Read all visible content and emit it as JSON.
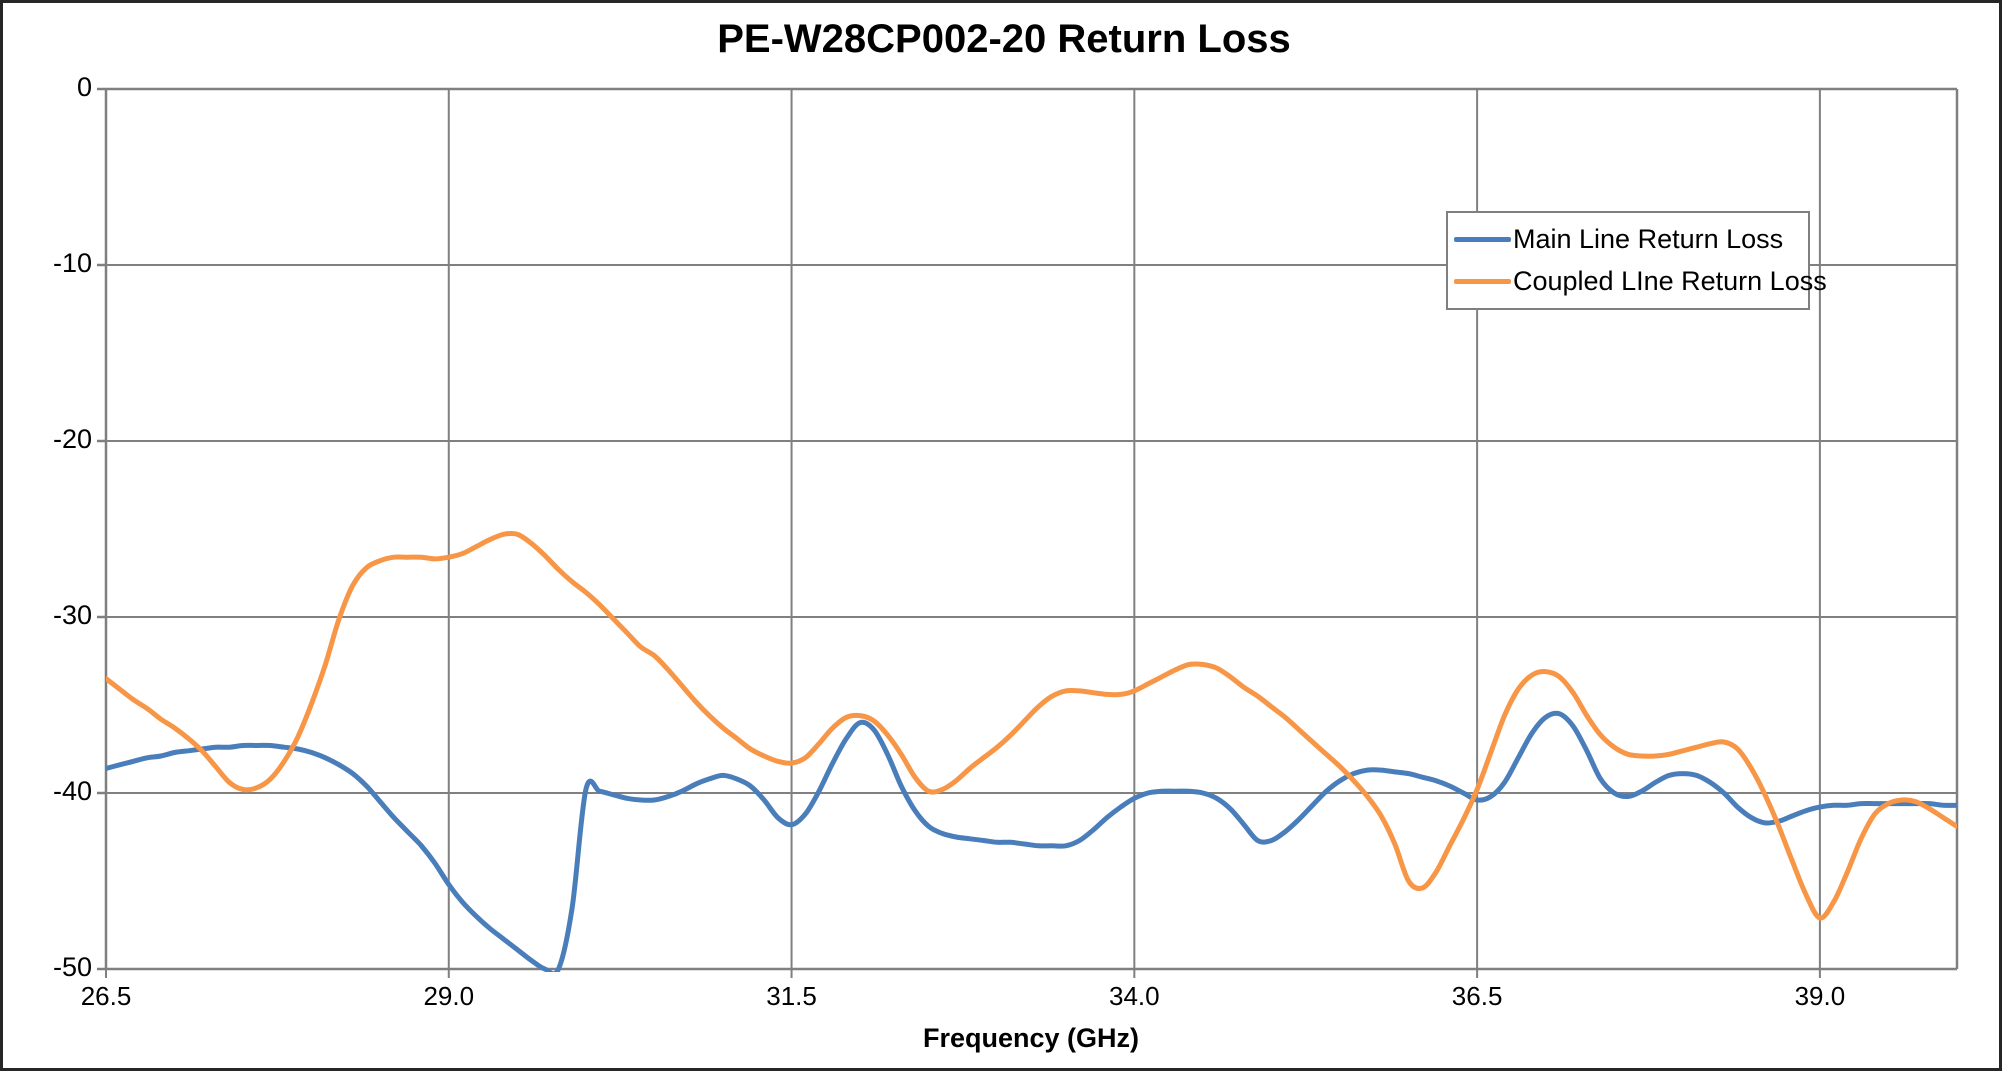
{
  "chart": {
    "title": "PE-W28CP002-20 Return Loss",
    "x_axis_title": "Frequency (GHz)",
    "x_tick_labels": [
      "26.5",
      "29.0",
      "31.5",
      "34.0",
      "36.5",
      "39.0"
    ],
    "y_tick_labels": [
      "0",
      "-10",
      "-20",
      "-30",
      "-40",
      "-50"
    ]
  },
  "chart_data": {
    "type": "line",
    "title": "PE-W28CP002-20 Return Loss",
    "xlabel": "Frequency (GHz)",
    "ylabel": "",
    "xlim": [
      26.5,
      40.0
    ],
    "ylim": [
      -50,
      0
    ],
    "xticks": [
      26.5,
      29.0,
      31.5,
      34.0,
      36.5,
      39.0
    ],
    "yticks": [
      0,
      -10,
      -20,
      -30,
      -40,
      -50
    ],
    "grid": true,
    "legend_position": "inside-top-right",
    "x_start": 26.5,
    "x_step": 0.1,
    "colors": {
      "gridline": "#808080",
      "axis": "#7F7F7F",
      "border": "#262626",
      "background": "#FFFFFF",
      "text": "#000000"
    },
    "series": [
      {
        "name": "Main Line Return Loss",
        "color": "#4A7EBB",
        "values": [
          -38.6,
          -38.4,
          -38.2,
          -38.0,
          -37.9,
          -37.7,
          -37.6,
          -37.5,
          -37.4,
          -37.4,
          -37.3,
          -37.3,
          -37.3,
          -37.4,
          -37.5,
          -37.7,
          -38.0,
          -38.4,
          -38.9,
          -39.6,
          -40.5,
          -41.4,
          -42.2,
          -43.0,
          -44.0,
          -45.2,
          -46.2,
          -47.0,
          -47.7,
          -48.3,
          -48.9,
          -49.5,
          -50.0,
          -50.0,
          -46.5,
          -39.8,
          -39.9,
          -40.1,
          -40.3,
          -40.4,
          -40.4,
          -40.2,
          -39.9,
          -39.5,
          -39.2,
          -39.0,
          -39.2,
          -39.6,
          -40.4,
          -41.4,
          -41.8,
          -41.2,
          -39.9,
          -38.3,
          -36.9,
          -36.0,
          -36.4,
          -37.8,
          -39.6,
          -41.0,
          -41.9,
          -42.3,
          -42.5,
          -42.6,
          -42.7,
          -42.8,
          -42.8,
          -42.9,
          -43.0,
          -43.0,
          -43.0,
          -42.7,
          -42.1,
          -41.4,
          -40.8,
          -40.3,
          -40.0,
          -39.9,
          -39.9,
          -39.9,
          -40.0,
          -40.3,
          -40.9,
          -41.8,
          -42.7,
          -42.7,
          -42.2,
          -41.5,
          -40.7,
          -39.9,
          -39.3,
          -38.9,
          -38.7,
          -38.7,
          -38.8,
          -38.9,
          -39.1,
          -39.3,
          -39.6,
          -40.0,
          -40.4,
          -40.2,
          -39.4,
          -38.0,
          -36.6,
          -35.7,
          -35.5,
          -36.2,
          -37.6,
          -39.2,
          -40.0,
          -40.2,
          -39.9,
          -39.4,
          -39.0,
          -38.9,
          -39.0,
          -39.4,
          -40.0,
          -40.8,
          -41.4,
          -41.7,
          -41.6,
          -41.3,
          -41.0,
          -40.8,
          -40.7,
          -40.7,
          -40.6,
          -40.6,
          -40.6,
          -40.6,
          -40.6,
          -40.6,
          -40.7,
          -40.7
        ]
      },
      {
        "name": "Coupled LIne Return Loss",
        "color": "#F79646",
        "values": [
          -33.5,
          -34.1,
          -34.7,
          -35.2,
          -35.8,
          -36.3,
          -36.9,
          -37.6,
          -38.5,
          -39.4,
          -39.8,
          -39.7,
          -39.2,
          -38.2,
          -36.8,
          -34.9,
          -32.7,
          -30.1,
          -28.2,
          -27.2,
          -26.8,
          -26.6,
          -26.6,
          -26.6,
          -26.7,
          -26.6,
          -26.4,
          -26.0,
          -25.6,
          -25.3,
          -25.3,
          -25.8,
          -26.5,
          -27.3,
          -28.0,
          -28.6,
          -29.3,
          -30.1,
          -30.9,
          -31.7,
          -32.2,
          -33.0,
          -33.9,
          -34.8,
          -35.6,
          -36.3,
          -36.9,
          -37.5,
          -37.9,
          -38.2,
          -38.3,
          -38.0,
          -37.2,
          -36.3,
          -35.7,
          -35.6,
          -35.9,
          -36.7,
          -37.8,
          -39.1,
          -39.9,
          -39.8,
          -39.3,
          -38.6,
          -38.0,
          -37.4,
          -36.7,
          -35.9,
          -35.1,
          -34.5,
          -34.2,
          -34.2,
          -34.3,
          -34.4,
          -34.4,
          -34.2,
          -33.8,
          -33.4,
          -33.0,
          -32.7,
          -32.7,
          -32.9,
          -33.4,
          -34.0,
          -34.5,
          -35.1,
          -35.7,
          -36.4,
          -37.1,
          -37.8,
          -38.5,
          -39.3,
          -40.2,
          -41.3,
          -42.9,
          -45.0,
          -45.4,
          -44.5,
          -43.0,
          -41.5,
          -39.8,
          -37.7,
          -35.6,
          -34.1,
          -33.3,
          -33.1,
          -33.4,
          -34.3,
          -35.6,
          -36.7,
          -37.4,
          -37.8,
          -37.9,
          -37.9,
          -37.8,
          -37.6,
          -37.4,
          -37.2,
          -37.1,
          -37.5,
          -38.6,
          -40.1,
          -41.9,
          -43.9,
          -45.8,
          -47.1,
          -46.2,
          -44.5,
          -42.6,
          -41.2,
          -40.6,
          -40.4,
          -40.5,
          -40.9,
          -41.4,
          -41.9
        ]
      }
    ]
  }
}
